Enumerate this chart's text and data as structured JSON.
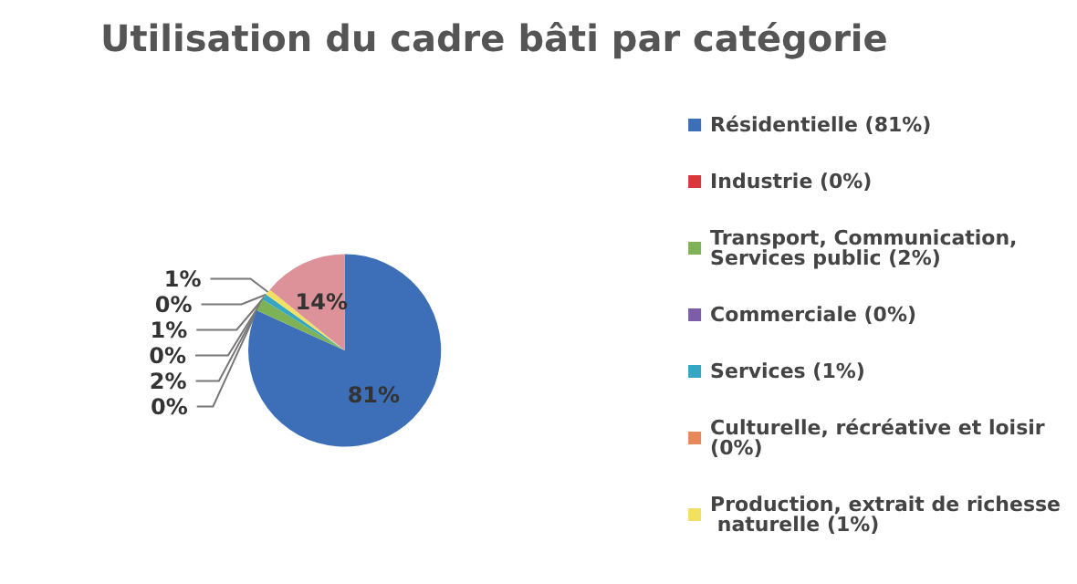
{
  "chart_data": {
    "type": "pie",
    "title": "Utilisation du cadre bâti par catégorie",
    "categories": [
      "Résidentielle (81%)",
      "Industrie (0%)",
      "Transport, Communication, Services public (2%)",
      "Commerciale (0%)",
      "Services (1%)",
      "Culturelle, récréative et loisir (0%)",
      "Production, extrait de richesse naturelle (1%)",
      null
    ],
    "values": [
      81,
      0,
      2,
      0,
      1,
      0,
      1,
      14
    ],
    "value_labels": [
      "81%",
      "0%",
      "2%",
      "0%",
      "1%",
      "0%",
      "1%",
      "14%"
    ],
    "colors": [
      "#3d6fb8",
      "#d9383a",
      "#7db356",
      "#7b5ea7",
      "#35a7c4",
      "#e8875a",
      "#f2e060",
      "#dd9198"
    ],
    "legend": "right"
  }
}
